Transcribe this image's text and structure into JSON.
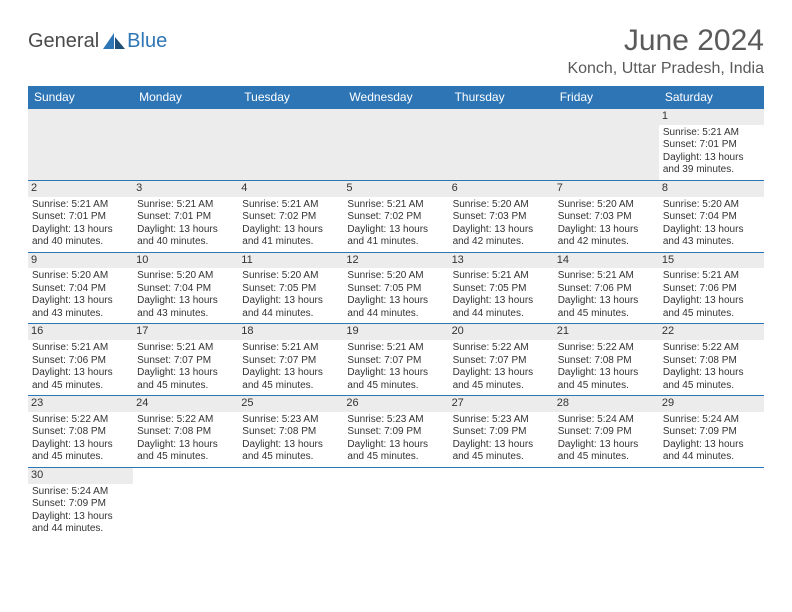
{
  "brand": {
    "name": "General",
    "suffix": "Blue",
    "name_color": "#4a4a4a",
    "suffix_color": "#2e75b6"
  },
  "title": "June 2024",
  "location": "Konch, Uttar Pradesh, India",
  "header_bg": "#2e75b6",
  "daynum_bg": "#ececec",
  "border_color": "#2e75b6",
  "days": [
    "Sunday",
    "Monday",
    "Tuesday",
    "Wednesday",
    "Thursday",
    "Friday",
    "Saturday"
  ],
  "weeks": [
    [
      null,
      null,
      null,
      null,
      null,
      null,
      {
        "n": "1",
        "sr": "Sunrise: 5:21 AM",
        "ss": "Sunset: 7:01 PM",
        "d1": "Daylight: 13 hours",
        "d2": "and 39 minutes."
      }
    ],
    [
      {
        "n": "2",
        "sr": "Sunrise: 5:21 AM",
        "ss": "Sunset: 7:01 PM",
        "d1": "Daylight: 13 hours",
        "d2": "and 40 minutes."
      },
      {
        "n": "3",
        "sr": "Sunrise: 5:21 AM",
        "ss": "Sunset: 7:01 PM",
        "d1": "Daylight: 13 hours",
        "d2": "and 40 minutes."
      },
      {
        "n": "4",
        "sr": "Sunrise: 5:21 AM",
        "ss": "Sunset: 7:02 PM",
        "d1": "Daylight: 13 hours",
        "d2": "and 41 minutes."
      },
      {
        "n": "5",
        "sr": "Sunrise: 5:21 AM",
        "ss": "Sunset: 7:02 PM",
        "d1": "Daylight: 13 hours",
        "d2": "and 41 minutes."
      },
      {
        "n": "6",
        "sr": "Sunrise: 5:20 AM",
        "ss": "Sunset: 7:03 PM",
        "d1": "Daylight: 13 hours",
        "d2": "and 42 minutes."
      },
      {
        "n": "7",
        "sr": "Sunrise: 5:20 AM",
        "ss": "Sunset: 7:03 PM",
        "d1": "Daylight: 13 hours",
        "d2": "and 42 minutes."
      },
      {
        "n": "8",
        "sr": "Sunrise: 5:20 AM",
        "ss": "Sunset: 7:04 PM",
        "d1": "Daylight: 13 hours",
        "d2": "and 43 minutes."
      }
    ],
    [
      {
        "n": "9",
        "sr": "Sunrise: 5:20 AM",
        "ss": "Sunset: 7:04 PM",
        "d1": "Daylight: 13 hours",
        "d2": "and 43 minutes."
      },
      {
        "n": "10",
        "sr": "Sunrise: 5:20 AM",
        "ss": "Sunset: 7:04 PM",
        "d1": "Daylight: 13 hours",
        "d2": "and 43 minutes."
      },
      {
        "n": "11",
        "sr": "Sunrise: 5:20 AM",
        "ss": "Sunset: 7:05 PM",
        "d1": "Daylight: 13 hours",
        "d2": "and 44 minutes."
      },
      {
        "n": "12",
        "sr": "Sunrise: 5:20 AM",
        "ss": "Sunset: 7:05 PM",
        "d1": "Daylight: 13 hours",
        "d2": "and 44 minutes."
      },
      {
        "n": "13",
        "sr": "Sunrise: 5:21 AM",
        "ss": "Sunset: 7:05 PM",
        "d1": "Daylight: 13 hours",
        "d2": "and 44 minutes."
      },
      {
        "n": "14",
        "sr": "Sunrise: 5:21 AM",
        "ss": "Sunset: 7:06 PM",
        "d1": "Daylight: 13 hours",
        "d2": "and 45 minutes."
      },
      {
        "n": "15",
        "sr": "Sunrise: 5:21 AM",
        "ss": "Sunset: 7:06 PM",
        "d1": "Daylight: 13 hours",
        "d2": "and 45 minutes."
      }
    ],
    [
      {
        "n": "16",
        "sr": "Sunrise: 5:21 AM",
        "ss": "Sunset: 7:06 PM",
        "d1": "Daylight: 13 hours",
        "d2": "and 45 minutes."
      },
      {
        "n": "17",
        "sr": "Sunrise: 5:21 AM",
        "ss": "Sunset: 7:07 PM",
        "d1": "Daylight: 13 hours",
        "d2": "and 45 minutes."
      },
      {
        "n": "18",
        "sr": "Sunrise: 5:21 AM",
        "ss": "Sunset: 7:07 PM",
        "d1": "Daylight: 13 hours",
        "d2": "and 45 minutes."
      },
      {
        "n": "19",
        "sr": "Sunrise: 5:21 AM",
        "ss": "Sunset: 7:07 PM",
        "d1": "Daylight: 13 hours",
        "d2": "and 45 minutes."
      },
      {
        "n": "20",
        "sr": "Sunrise: 5:22 AM",
        "ss": "Sunset: 7:07 PM",
        "d1": "Daylight: 13 hours",
        "d2": "and 45 minutes."
      },
      {
        "n": "21",
        "sr": "Sunrise: 5:22 AM",
        "ss": "Sunset: 7:08 PM",
        "d1": "Daylight: 13 hours",
        "d2": "and 45 minutes."
      },
      {
        "n": "22",
        "sr": "Sunrise: 5:22 AM",
        "ss": "Sunset: 7:08 PM",
        "d1": "Daylight: 13 hours",
        "d2": "and 45 minutes."
      }
    ],
    [
      {
        "n": "23",
        "sr": "Sunrise: 5:22 AM",
        "ss": "Sunset: 7:08 PM",
        "d1": "Daylight: 13 hours",
        "d2": "and 45 minutes."
      },
      {
        "n": "24",
        "sr": "Sunrise: 5:22 AM",
        "ss": "Sunset: 7:08 PM",
        "d1": "Daylight: 13 hours",
        "d2": "and 45 minutes."
      },
      {
        "n": "25",
        "sr": "Sunrise: 5:23 AM",
        "ss": "Sunset: 7:08 PM",
        "d1": "Daylight: 13 hours",
        "d2": "and 45 minutes."
      },
      {
        "n": "26",
        "sr": "Sunrise: 5:23 AM",
        "ss": "Sunset: 7:09 PM",
        "d1": "Daylight: 13 hours",
        "d2": "and 45 minutes."
      },
      {
        "n": "27",
        "sr": "Sunrise: 5:23 AM",
        "ss": "Sunset: 7:09 PM",
        "d1": "Daylight: 13 hours",
        "d2": "and 45 minutes."
      },
      {
        "n": "28",
        "sr": "Sunrise: 5:24 AM",
        "ss": "Sunset: 7:09 PM",
        "d1": "Daylight: 13 hours",
        "d2": "and 45 minutes."
      },
      {
        "n": "29",
        "sr": "Sunrise: 5:24 AM",
        "ss": "Sunset: 7:09 PM",
        "d1": "Daylight: 13 hours",
        "d2": "and 44 minutes."
      }
    ],
    [
      {
        "n": "30",
        "sr": "Sunrise: 5:24 AM",
        "ss": "Sunset: 7:09 PM",
        "d1": "Daylight: 13 hours",
        "d2": "and 44 minutes."
      },
      null,
      null,
      null,
      null,
      null,
      null
    ]
  ]
}
